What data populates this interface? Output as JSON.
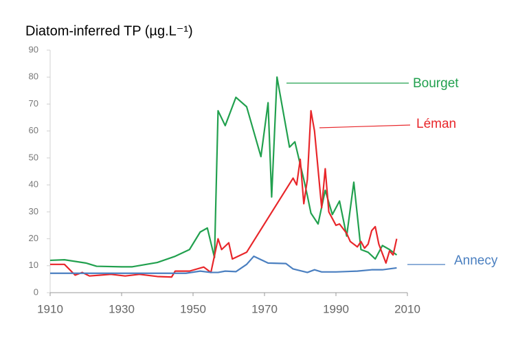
{
  "chart_data": {
    "type": "line",
    "title": "Diatom-inferred TP (µg.L⁻¹)",
    "xlim": [
      1910,
      2010
    ],
    "xticks": [
      1910,
      1930,
      1950,
      1970,
      1990,
      2010
    ],
    "ylim": [
      0,
      90
    ],
    "yticks": [
      0,
      10,
      20,
      30,
      40,
      50,
      60,
      70,
      80,
      90
    ],
    "series": [
      {
        "name": "Bourget",
        "color": "#21a04e",
        "x": [
          1910,
          1914,
          1920,
          1923,
          1930,
          1933,
          1940,
          1945,
          1949,
          1952,
          1954,
          1956,
          1957,
          1959,
          1962,
          1965,
          1969,
          1971,
          1972,
          1973.5,
          1977,
          1978.5,
          1981,
          1982,
          1983,
          1985,
          1987,
          1989,
          1991,
          1993,
          1995,
          1997,
          1999,
          2001,
          2003,
          2005,
          2007
        ],
        "values": [
          12,
          12.2,
          11,
          9.8,
          9.6,
          9.6,
          11.2,
          13.5,
          16,
          22.5,
          24,
          13,
          67.5,
          62,
          72.5,
          69,
          50.5,
          70.5,
          35.5,
          80,
          54,
          56,
          42,
          36,
          29.5,
          25.5,
          38,
          29,
          34,
          21,
          41,
          16,
          15,
          12.5,
          17.5,
          16,
          14
        ]
      },
      {
        "name": "Léman",
        "color": "#e8262a",
        "x": [
          1910,
          1914,
          1917,
          1919,
          1921,
          1924,
          1927,
          1931,
          1935,
          1940,
          1944,
          1945,
          1949,
          1953,
          1955,
          1957,
          1958,
          1960,
          1961,
          1965,
          1978,
          1979,
          1980,
          1981,
          1982,
          1983,
          1984,
          1986,
          1987,
          1988,
          1990,
          1991,
          1993,
          1994,
          1996,
          1997,
          1998,
          1999,
          2000,
          2001,
          2002,
          2004,
          2005,
          2006,
          2007
        ],
        "values": [
          10.5,
          10.5,
          6.5,
          7.5,
          6.2,
          6.5,
          6.8,
          6.2,
          6.8,
          6,
          5.8,
          8,
          8,
          9.5,
          7.5,
          20,
          16,
          18.5,
          12.5,
          15,
          42.5,
          40,
          49.5,
          33,
          42,
          67.5,
          60,
          31.5,
          46,
          30,
          25,
          25.5,
          22,
          19,
          17,
          19,
          16.5,
          18,
          23,
          24.5,
          18,
          11,
          15.5,
          14,
          20
        ]
      },
      {
        "name": "Annecy",
        "color": "#4a7fc0",
        "x": [
          1910,
          1930,
          1948,
          1952,
          1955,
          1957,
          1959,
          1962,
          1965,
          1967,
          1971,
          1976,
          1978,
          1982,
          1984,
          1986,
          1990,
          1996,
          2000,
          2003,
          2007
        ],
        "values": [
          7.2,
          7.2,
          7.2,
          8,
          7.5,
          7.5,
          8,
          7.8,
          10.5,
          13.5,
          11,
          10.8,
          8.8,
          7.5,
          8.5,
          7.7,
          7.7,
          8,
          8.5,
          8.5,
          9.2
        ]
      }
    ]
  }
}
